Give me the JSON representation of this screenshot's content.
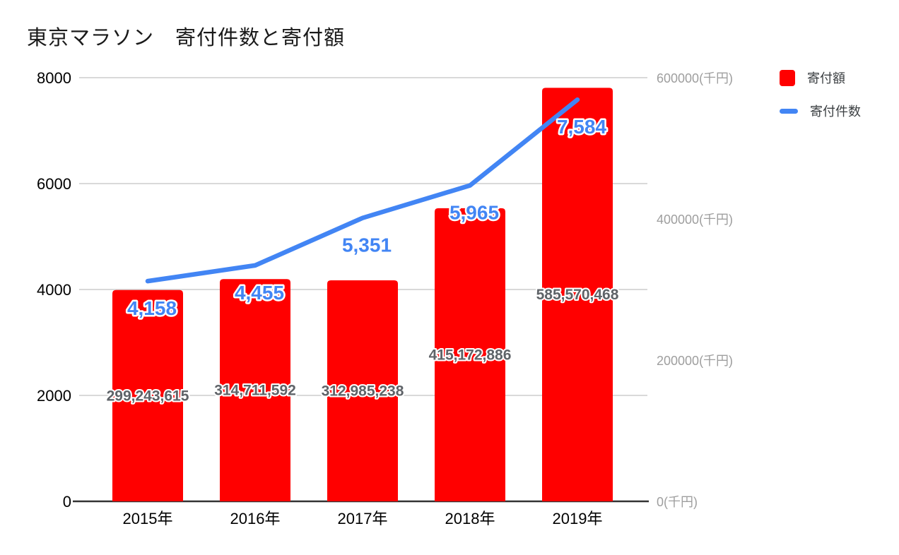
{
  "title": "東京マラソン　寄付件数と寄付額",
  "colors": {
    "bar": "#ff0000",
    "line": "#4285f4",
    "bar_label": "#5f6368",
    "line_label": "#4285f4",
    "gridline": "#d9d9d9",
    "axis_line": "#333333",
    "axis_label_dark": "#000000",
    "axis_label_gray": "#9e9e9e",
    "background": "#ffffff"
  },
  "legend": {
    "position": "right-top",
    "items": [
      {
        "label": "寄付額",
        "color": "#ff0000",
        "swatch": "square",
        "icon": "bar-series-swatch"
      },
      {
        "label": "寄付件数",
        "color": "#4285f4",
        "swatch": "line",
        "icon": "line-series-swatch"
      }
    ]
  },
  "chart_data": {
    "type": "combo-bar-line",
    "title": "東京マラソン　寄付件数と寄付額",
    "categories": [
      "2015年",
      "2016年",
      "2017年",
      "2018年",
      "2019年"
    ],
    "series": [
      {
        "name": "寄付額",
        "type": "bar",
        "axis": "right",
        "color": "#ff0000",
        "unit": "円",
        "values": [
          299243615,
          314711592,
          312985238,
          415172886,
          585570468
        ],
        "labels": [
          "299,243,615",
          "314,711,592",
          "312,985,238",
          "415,172,886",
          "585,570,468"
        ]
      },
      {
        "name": "寄付件数",
        "type": "line",
        "axis": "left",
        "color": "#4285f4",
        "unit": "件",
        "values": [
          4158,
          4455,
          5351,
          5965,
          7584
        ],
        "labels": [
          "4,158",
          "4,455",
          "5,351",
          "5,965",
          "7,584"
        ]
      }
    ],
    "left_axis": {
      "min": 0,
      "max": 8000,
      "ticks": [
        0,
        2000,
        4000,
        6000,
        8000
      ],
      "tick_labels": [
        "0",
        "2000",
        "4000",
        "6000",
        "8000"
      ]
    },
    "right_axis": {
      "min": 0,
      "max": 600000,
      "unit": "千円",
      "ticks": [
        {
          "value": 0,
          "label": "0(千円)"
        },
        {
          "value": 200000,
          "label": "200000(千円)"
        },
        {
          "value": 400000,
          "label": "400000(千円)"
        },
        {
          "value": 600000,
          "label": "600000(千円)"
        }
      ]
    },
    "grid": true,
    "legend_entries": [
      "寄付額",
      "寄付件数"
    ],
    "legend_position": "right-top"
  }
}
